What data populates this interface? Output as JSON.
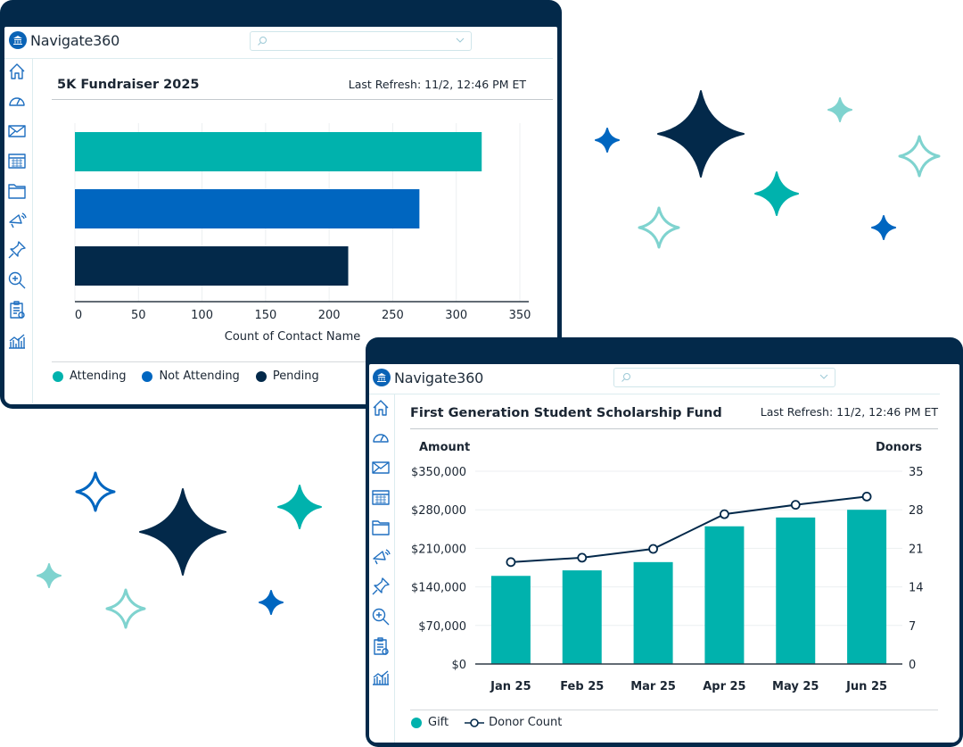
{
  "colors": {
    "navy": "#03294a",
    "teal": "#00b2ad",
    "blue": "#0066c0",
    "light_teal": "#7fd3cf",
    "icon_blue": "#1f6fc0"
  },
  "sidebar_icons": [
    "home-icon",
    "gauge-icon",
    "mail-icon",
    "calendar-icon",
    "folder-icon",
    "megaphone-icon",
    "pin-icon",
    "zoom-search-icon",
    "clipboard-icon",
    "analytics-icon"
  ],
  "window1": {
    "app_name": "Navigate360",
    "search": {
      "placeholder": "",
      "icon": "search-icon",
      "dropdown_icon": "chevron-down-icon"
    },
    "title": "5K Fundraiser 2025",
    "refresh": "Last Refresh: 11/2, 12:46 PM ET"
  },
  "window2": {
    "app_name": "Navigate360",
    "search": {
      "placeholder": "",
      "icon": "search-icon",
      "dropdown_icon": "chevron-down-icon"
    },
    "title": "First Generation Student Scholarship Fund",
    "refresh": "Last Refresh: 11/2, 12:46 PM ET"
  },
  "chart_data": [
    {
      "type": "bar",
      "orientation": "horizontal",
      "categories": [
        "Attending",
        "Not Attending",
        "Pending"
      ],
      "values": [
        320,
        271,
        215
      ],
      "colors": [
        "#00b2ad",
        "#0066c0",
        "#03294a"
      ],
      "xlabel": "Count of Contact Name",
      "xlim": [
        0,
        350
      ],
      "xticks": [
        "0",
        "50",
        "100",
        "150",
        "200",
        "250",
        "300",
        "350"
      ],
      "grid": true,
      "legend": {
        "placement": "bottom",
        "entries": [
          "Attending",
          "Not Attending",
          "Pending"
        ]
      }
    },
    {
      "type": "bar+line",
      "categories": [
        "Jan 25",
        "Feb 25",
        "Mar 25",
        "Apr 25",
        "May 25",
        "Jun 25"
      ],
      "series": [
        {
          "name": "Gift",
          "type": "bar",
          "axis": "left",
          "color": "#00b2ad",
          "values": [
            160000,
            170000,
            185000,
            250000,
            266000,
            280000
          ]
        },
        {
          "name": "Donor Count",
          "type": "line",
          "axis": "right",
          "color": "#03294a",
          "values": [
            18.5,
            19.3,
            20.9,
            27.2,
            28.9,
            30.4
          ]
        }
      ],
      "ylabel_left": "Amount",
      "ylabel_right": "Donors",
      "ylim_left": [
        0,
        350000
      ],
      "ylim_right": [
        0,
        35
      ],
      "yticks_left": [
        "$0",
        "$70,000",
        "$140,000",
        "$210,000",
        "$280,000",
        "$350,000"
      ],
      "yticks_right": [
        "0",
        "7",
        "14",
        "21",
        "28",
        "35"
      ],
      "grid": true,
      "legend": {
        "placement": "bottom-left",
        "entries": [
          "Gift",
          "Donor Count"
        ]
      }
    }
  ]
}
